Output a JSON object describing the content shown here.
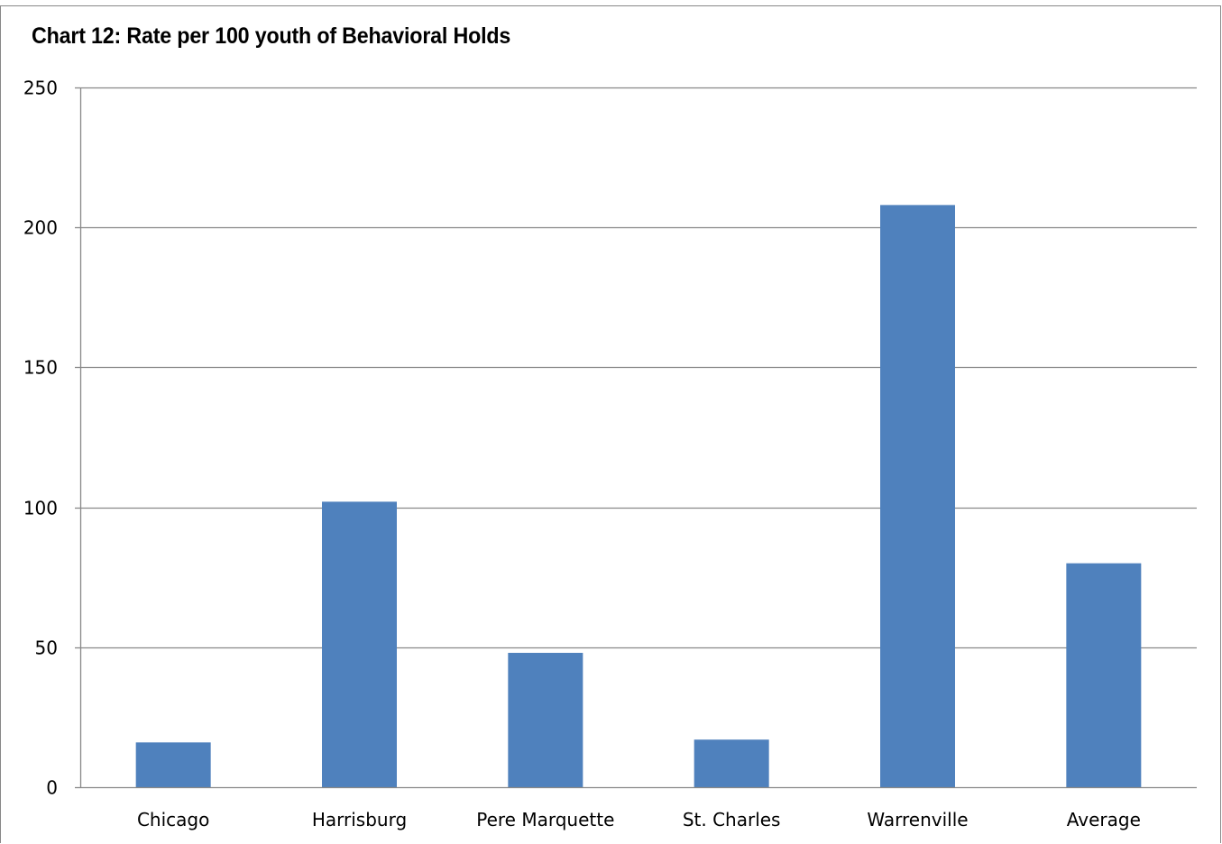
{
  "chart_data": {
    "type": "bar",
    "title": "Chart 12: Rate per 100 youth of Behavioral Holds",
    "categories": [
      "Chicago",
      "Harrisburg",
      "Pere Marquette",
      "St. Charles",
      "Warrenville",
      "Average"
    ],
    "values": [
      16,
      102,
      48,
      17,
      208,
      80
    ],
    "ylim": [
      0,
      250
    ],
    "yticks": [
      0,
      50,
      100,
      150,
      200,
      250
    ],
    "grid": true,
    "legend": "none",
    "bar_color": "#4f81bd",
    "grid_color": "#888888"
  }
}
